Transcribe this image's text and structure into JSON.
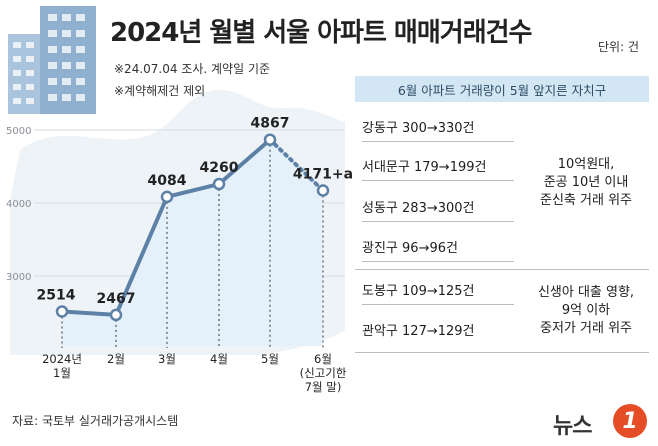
{
  "header": {
    "title": "2024년 월별 서울 아파트 매매거래건수",
    "unit": "단위: 건",
    "notes": [
      "※24.07.04 조사. 계약일 기준",
      "※계약해제건 제외"
    ]
  },
  "chart_data": {
    "type": "line",
    "title": "2024년 월별 서울 아파트 매매거래건수",
    "xlabel": "",
    "ylabel": "",
    "x": [
      "2024년 1월",
      "2월",
      "3월",
      "4월",
      "5월",
      "6월 (신고기한 7월 말)"
    ],
    "x_tick_lines": [
      [
        "2024년",
        "1월"
      ],
      [
        "2월"
      ],
      [
        "3월"
      ],
      [
        "4월"
      ],
      [
        "5월"
      ],
      [
        "6월",
        "(신고기한",
        "7월 말)"
      ]
    ],
    "series": [
      {
        "values": [
          2514,
          2467,
          4084,
          4260,
          4867,
          4171
        ],
        "labels": [
          "2514",
          "2467",
          "4084",
          "4260",
          "4867",
          "4171+a"
        ],
        "last_segment_dotted": true
      }
    ],
    "ylim": [
      2500,
      5100
    ],
    "yticks": [
      3000,
      4000,
      5000
    ],
    "ytick_labels": [
      "3000",
      "4000",
      "5000"
    ],
    "grid": true,
    "colors": {
      "line": "#5d81a6",
      "area": "#e5f1fa",
      "marker_fill": "#ffffff"
    }
  },
  "districts": {
    "header": "6월 아파트 거래량이 5월 앞지른 자치구",
    "rows": [
      {
        "name": "강동구",
        "change": "300→330건"
      },
      {
        "name": "서대문구",
        "change": "179→199건"
      },
      {
        "name": "성동구",
        "change": "283→300건"
      },
      {
        "name": "광진구",
        "change": "96→96건"
      },
      {
        "name": "도봉구",
        "change": "109→125건"
      },
      {
        "name": "관악구",
        "change": "127→129건"
      }
    ],
    "groups": [
      {
        "lines": [
          "10억원대,",
          "준공 10년 이내",
          "준신축 거래 위주"
        ]
      },
      {
        "lines": [
          "신생아 대출 영향,",
          "9억 이하",
          "중저가 거래 위주"
        ]
      }
    ]
  },
  "footer": {
    "source": "자료: 국토부 실거래가공개시스템",
    "logo_text": "뉴스",
    "logo_mark": "1"
  },
  "icons": {
    "decoration": "apartment-buildings-icon",
    "logo": "news1-logo-icon"
  }
}
